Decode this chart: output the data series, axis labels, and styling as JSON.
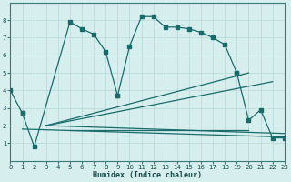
{
  "xlabel": "Humidex (Indice chaleur)",
  "bg_color": "#d6eeee",
  "grid_color": "#b8d8d8",
  "line_color": "#1a6b6b",
  "xlim": [
    -0.5,
    23.5
  ],
  "ylim": [
    0,
    9
  ],
  "xticks": [
    0,
    1,
    2,
    3,
    4,
    5,
    6,
    7,
    8,
    9,
    10,
    11,
    12,
    13,
    14,
    15,
    16,
    17,
    18,
    19,
    20,
    21,
    22,
    23
  ],
  "yticks": [
    1,
    2,
    3,
    4,
    5,
    6,
    7,
    8
  ],
  "seg1": {
    "x": [
      0,
      1
    ],
    "y": [
      4.0,
      2.7
    ]
  },
  "seg2": {
    "x": [
      1,
      2,
      5,
      6,
      7,
      8,
      9
    ],
    "y": [
      2.7,
      0.8,
      7.9,
      7.5,
      7.2,
      6.2,
      3.7
    ]
  },
  "seg3": {
    "x": [
      9,
      10,
      11,
      12,
      13,
      14,
      15,
      16,
      17,
      18,
      19
    ],
    "y": [
      3.7,
      6.5,
      8.2,
      8.2,
      7.6,
      7.6,
      7.5,
      7.3,
      7.0,
      6.6,
      5.0
    ]
  },
  "seg4": {
    "x": [
      19,
      20,
      21,
      22,
      23
    ],
    "y": [
      5.0,
      2.3,
      2.9,
      1.3,
      1.3
    ]
  },
  "line1": {
    "x": [
      3,
      20
    ],
    "y": [
      2.0,
      5.0
    ]
  },
  "line2": {
    "x": [
      3,
      22
    ],
    "y": [
      2.0,
      4.5
    ]
  },
  "line3": {
    "x": [
      1,
      23
    ],
    "y": [
      1.3,
      1.35
    ]
  },
  "line4": {
    "x": [
      3,
      23
    ],
    "y": [
      1.8,
      1.5
    ]
  },
  "line5": {
    "x": [
      3,
      10
    ],
    "y": [
      1.9,
      1.9
    ]
  }
}
